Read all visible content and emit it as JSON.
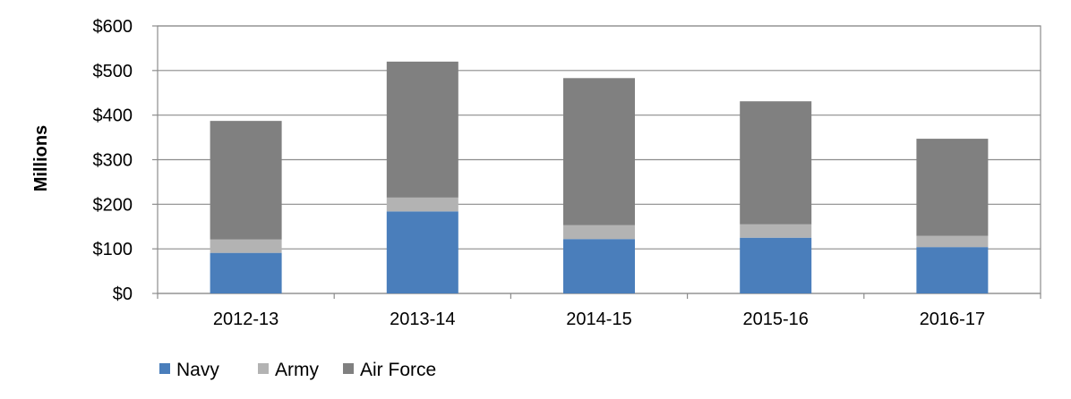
{
  "chart_data": {
    "type": "bar",
    "stacked": true,
    "categories": [
      "2012-13",
      "2013-14",
      "2014-15",
      "2015-16",
      "2016-17"
    ],
    "series": [
      {
        "name": "Navy",
        "color": "#4a7ebb",
        "values": [
          91,
          184,
          122,
          125,
          104
        ]
      },
      {
        "name": "Army",
        "color": "#b3b3b3",
        "values": [
          30,
          31,
          31,
          30,
          25
        ]
      },
      {
        "name": "Air Force",
        "color": "#808080",
        "values": [
          266,
          305,
          330,
          276,
          218
        ]
      }
    ],
    "title": "",
    "xlabel": "",
    "ylabel": "Millions",
    "ylim": [
      0,
      600
    ],
    "yticks": [
      0,
      100,
      200,
      300,
      400,
      500,
      600
    ],
    "ytick_labels": [
      "$0",
      "$100",
      "$200",
      "$300",
      "$400",
      "$500",
      "$600"
    ],
    "grid": true,
    "legend_position": "bottom-left"
  }
}
